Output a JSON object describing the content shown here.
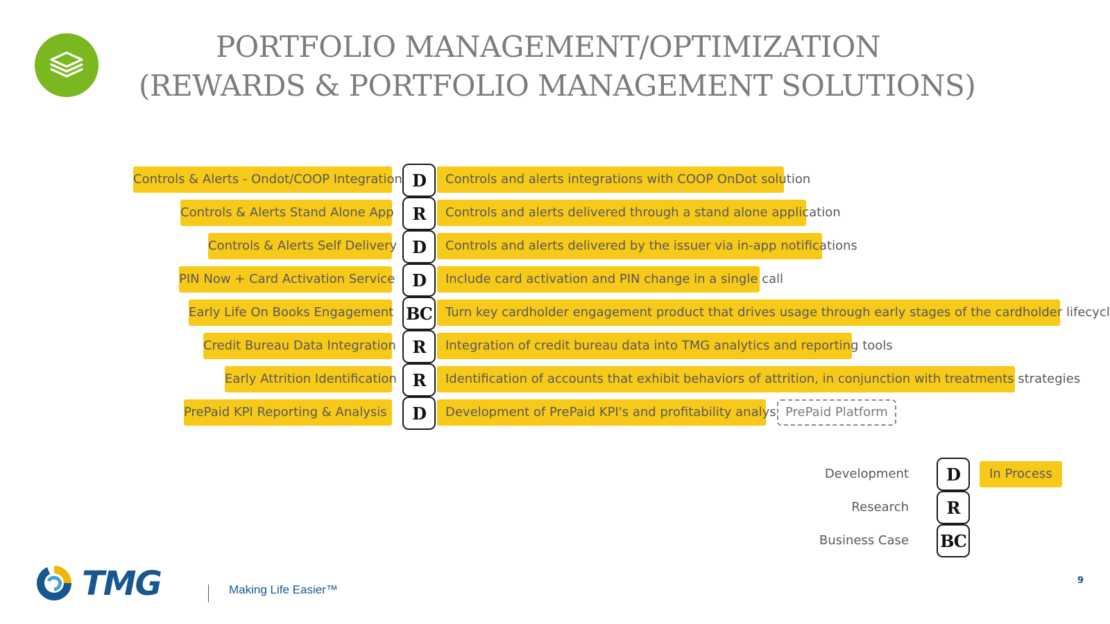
{
  "header": {
    "title_line1": "PORTFOLIO MANAGEMENT/OPTIMIZATION",
    "title_line2": "(REWARDS & PORTFOLIO MANAGEMENT SOLUTIONS)",
    "icon": "layers-icon"
  },
  "rows": [
    {
      "name": "Controls & Alerts - Ondot/COOP Integration",
      "status": "D",
      "description": "Controls and alerts integrations with COOP OnDot solution"
    },
    {
      "name": "Controls & Alerts Stand Alone App",
      "status": "R",
      "description": "Controls and alerts delivered through a stand alone application"
    },
    {
      "name": "Controls & Alerts Self Delivery",
      "status": "D",
      "description": "Controls and alerts delivered by the issuer via in-app notifications"
    },
    {
      "name": "PIN Now + Card Activation Service",
      "status": "D",
      "description": "Include card activation and PIN change in a single call"
    },
    {
      "name": "Early Life On Books Engagement",
      "status": "BC",
      "description": "Turn key cardholder engagement product that drives usage through early stages of the cardholder lifecycle"
    },
    {
      "name": "Credit Bureau Data Integration",
      "status": "R",
      "description": "Integration of credit bureau data into TMG analytics and reporting tools"
    },
    {
      "name": "Early Attrition Identification",
      "status": "R",
      "description": "Identification of accounts that exhibit behaviors of attrition, in conjunction with treatments strategies"
    },
    {
      "name": "PrePaid KPI Reporting & Analysis",
      "status": "D",
      "description": "Development of PrePaid KPI's and profitability analysis",
      "tag": "PrePaid Platform"
    }
  ],
  "legend": {
    "items": [
      {
        "label": "Development",
        "code": "D"
      },
      {
        "label": "Research",
        "code": "R"
      },
      {
        "label": "Business Case",
        "code": "BC"
      }
    ],
    "in_process_label": "In Process"
  },
  "footer": {
    "logo_text": "TMG",
    "tagline": "Making Life Easier™",
    "page_number": "9"
  },
  "colors": {
    "highlight": "#f7c919",
    "icon_green": "#79b81e",
    "brand_blue": "#17578f"
  }
}
